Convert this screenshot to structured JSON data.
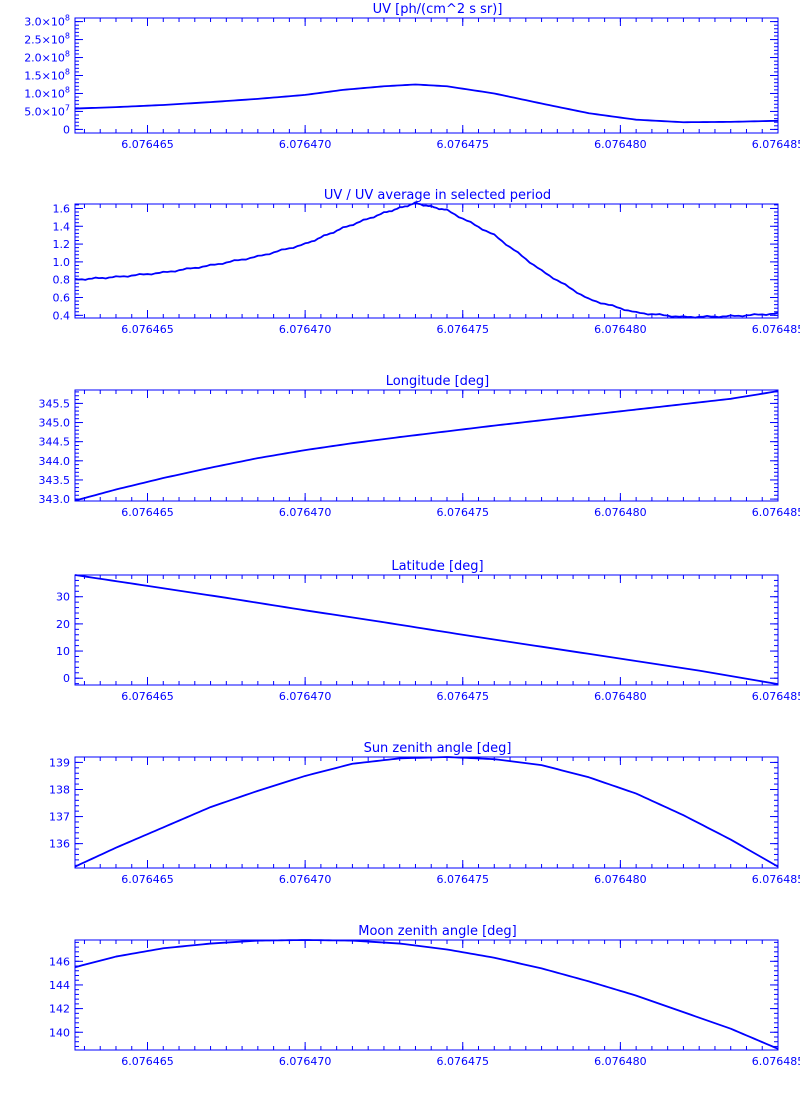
{
  "line_color": "#0000ff",
  "background_color": "#ffffff",
  "chart_data": [
    {
      "type": "line",
      "title": "UV [ph/(cm^2 s sr)]",
      "xlim": [
        6.0764627,
        6.076485
      ],
      "ylim": [
        -10000000.0,
        310000000.0
      ],
      "x_ticks": [
        6.076465,
        6.07647,
        6.076475,
        6.07648,
        6.076485
      ],
      "x_tick_labels": [
        "6.076465",
        "6.076470",
        "6.076475",
        "6.076480",
        "6.076485"
      ],
      "y_ticks": [
        0,
        50000000.0,
        100000000.0,
        150000000.0,
        200000000.0,
        250000000.0,
        300000000.0
      ],
      "y_tick_labels": [
        {
          "mantissa": "0",
          "exp": ""
        },
        {
          "mantissa": "5.0×10",
          "exp": "7"
        },
        {
          "mantissa": "1.0×10",
          "exp": "8"
        },
        {
          "mantissa": "1.5×10",
          "exp": "8"
        },
        {
          "mantissa": "2.0×10",
          "exp": "8"
        },
        {
          "mantissa": "2.5×10",
          "exp": "8"
        },
        {
          "mantissa": "3.0×10",
          "exp": "8"
        }
      ],
      "series": [
        {
          "x": [
            6.0764627,
            6.076464,
            6.0764655,
            6.076467,
            6.0764685,
            6.07647,
            6.0764712,
            6.0764725,
            6.0764735,
            6.0764745,
            6.076476,
            6.0764775,
            6.076479,
            6.0764805,
            6.076482,
            6.0764835,
            6.076485
          ],
          "y": [
            58000000.0,
            62000000.0,
            68000000.0,
            76000000.0,
            85000000.0,
            96000000.0,
            110000000.0,
            120000000.0,
            125000000.0,
            120000000.0,
            100000000.0,
            72000000.0,
            45000000.0,
            27000000.0,
            20000000.0,
            21000000.0,
            24000000.0
          ]
        }
      ]
    },
    {
      "type": "line",
      "title": "UV / UV average in selected period",
      "xlim": [
        6.0764627,
        6.076485
      ],
      "ylim": [
        0.37,
        1.65
      ],
      "x_ticks": [
        6.076465,
        6.07647,
        6.076475,
        6.07648,
        6.076485
      ],
      "x_tick_labels": [
        "6.076465",
        "6.076470",
        "6.076475",
        "6.076480",
        "6.076485"
      ],
      "y_ticks": [
        0.4,
        0.6,
        0.8,
        1.0,
        1.2,
        1.4,
        1.6
      ],
      "y_tick_labels": [
        "0.4",
        "0.6",
        "0.8",
        "1.0",
        "1.2",
        "1.4",
        "1.6"
      ],
      "series": [
        {
          "x": [
            6.0764627,
            6.076464,
            6.0764655,
            6.076467,
            6.0764685,
            6.07647,
            6.0764712,
            6.0764725,
            6.0764735,
            6.0764745,
            6.076476,
            6.0764775,
            6.076479,
            6.0764805,
            6.076482,
            6.0764835,
            6.076485
          ],
          "y": [
            0.8,
            0.83,
            0.88,
            0.96,
            1.06,
            1.2,
            1.38,
            1.55,
            1.66,
            1.58,
            1.3,
            0.9,
            0.58,
            0.43,
            0.38,
            0.39,
            0.42
          ]
        }
      ]
    },
    {
      "type": "line",
      "title": "Longitude [deg]",
      "xlim": [
        6.0764627,
        6.076485
      ],
      "ylim": [
        342.95,
        345.85
      ],
      "x_ticks": [
        6.076465,
        6.07647,
        6.076475,
        6.07648,
        6.076485
      ],
      "x_tick_labels": [
        "6.076465",
        "6.076470",
        "6.076475",
        "6.076480",
        "6.076485"
      ],
      "y_ticks": [
        343.0,
        343.5,
        344.0,
        344.5,
        345.0,
        345.5
      ],
      "y_tick_labels": [
        "343.0",
        "343.5",
        "344.0",
        "344.5",
        "345.0",
        "345.5"
      ],
      "series": [
        {
          "x": [
            6.0764627,
            6.076464,
            6.0764655,
            6.076467,
            6.0764685,
            6.07647,
            6.0764715,
            6.076473,
            6.0764745,
            6.076476,
            6.0764775,
            6.076479,
            6.0764805,
            6.076482,
            6.0764835,
            6.076485
          ],
          "y": [
            342.96,
            343.25,
            343.55,
            343.82,
            344.07,
            344.28,
            344.46,
            344.62,
            344.77,
            344.92,
            345.06,
            345.2,
            345.34,
            345.48,
            345.62,
            345.82
          ]
        }
      ]
    },
    {
      "type": "line",
      "title": "Latitude [deg]",
      "xlim": [
        6.0764627,
        6.076485
      ],
      "ylim": [
        -2.5,
        38
      ],
      "x_ticks": [
        6.076465,
        6.07647,
        6.076475,
        6.07648,
        6.076485
      ],
      "x_tick_labels": [
        "6.076465",
        "6.076470",
        "6.076475",
        "6.076480",
        "6.076485"
      ],
      "y_ticks": [
        0,
        10,
        20,
        30
      ],
      "y_tick_labels": [
        "0",
        "10",
        "20",
        "30"
      ],
      "series": [
        {
          "x": [
            6.0764627,
            6.076465,
            6.0764675,
            6.07647,
            6.0764725,
            6.076475,
            6.0764775,
            6.07648,
            6.0764825,
            6.076485
          ],
          "y": [
            38.0,
            34.0,
            29.6,
            25.0,
            20.6,
            16.0,
            11.6,
            7.2,
            2.8,
            -2.2
          ]
        }
      ]
    },
    {
      "type": "line",
      "title": "Sun zenith angle [deg]",
      "xlim": [
        6.0764627,
        6.076485
      ],
      "ylim": [
        135.1,
        139.2
      ],
      "x_ticks": [
        6.076465,
        6.07647,
        6.076475,
        6.07648,
        6.076485
      ],
      "x_tick_labels": [
        "6.076465",
        "6.076470",
        "6.076475",
        "6.076480",
        "6.076485"
      ],
      "y_ticks": [
        136,
        137,
        138,
        139
      ],
      "y_tick_labels": [
        "136",
        "137",
        "138",
        "139"
      ],
      "series": [
        {
          "x": [
            6.0764627,
            6.076464,
            6.0764655,
            6.076467,
            6.0764685,
            6.07647,
            6.0764715,
            6.076473,
            6.0764745,
            6.076476,
            6.0764775,
            6.076479,
            6.0764805,
            6.076482,
            6.0764835,
            6.076485
          ],
          "y": [
            135.15,
            135.85,
            136.6,
            137.35,
            137.95,
            138.5,
            138.95,
            139.15,
            139.2,
            139.12,
            138.9,
            138.45,
            137.85,
            137.05,
            136.15,
            135.15
          ]
        }
      ]
    },
    {
      "type": "line",
      "title": "Moon zenith angle [deg]",
      "xlim": [
        6.0764627,
        6.076485
      ],
      "ylim": [
        138.5,
        147.8
      ],
      "x_ticks": [
        6.076465,
        6.07647,
        6.076475,
        6.07648,
        6.076485
      ],
      "x_tick_labels": [
        "6.076465",
        "6.076470",
        "6.076475",
        "6.076480",
        "6.076485"
      ],
      "y_ticks": [
        140,
        142,
        144,
        146
      ],
      "y_tick_labels": [
        "140",
        "142",
        "144",
        "146"
      ],
      "series": [
        {
          "x": [
            6.0764627,
            6.076464,
            6.0764655,
            6.076467,
            6.0764685,
            6.07647,
            6.0764715,
            6.076473,
            6.0764745,
            6.076476,
            6.0764775,
            6.076479,
            6.0764805,
            6.076482,
            6.0764835,
            6.076485
          ],
          "y": [
            145.5,
            146.4,
            147.1,
            147.5,
            147.75,
            147.8,
            147.75,
            147.5,
            147.0,
            146.3,
            145.4,
            144.3,
            143.1,
            141.7,
            140.3,
            138.6
          ]
        }
      ]
    }
  ]
}
